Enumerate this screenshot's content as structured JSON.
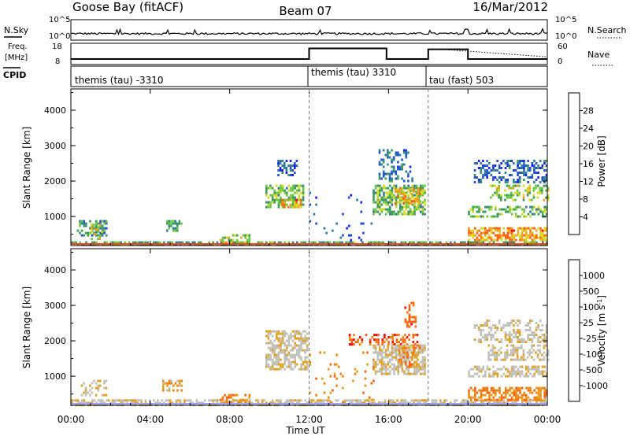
{
  "header": {
    "station": "Goose Bay (fitACF)",
    "beam": "Beam 07",
    "date": "16/Mar/2012"
  },
  "noise_panel": {
    "left_label": "N.Sky",
    "right_label": "N.Search",
    "left_ticks": [
      "10^5",
      "10^0"
    ],
    "right_ticks": [
      "10^5",
      "10^0"
    ]
  },
  "freq_panel": {
    "left_label_line1": "Freq.",
    "left_label_line2": "[MHz]",
    "right_label": "Nave",
    "left_ticks": [
      "18",
      "8"
    ],
    "right_ticks": [
      "60",
      "0"
    ],
    "freq_segments": [
      {
        "start_h": 0.0,
        "end_h": 12.0,
        "freq_mhz": 10.6
      },
      {
        "start_h": 12.0,
        "end_h": 15.9,
        "freq_mhz": 15.6
      },
      {
        "start_h": 15.9,
        "end_h": 18.0,
        "freq_mhz": 10.6
      },
      {
        "start_h": 18.0,
        "end_h": 20.0,
        "freq_mhz": 15.2
      },
      {
        "start_h": 20.0,
        "end_h": 24.0,
        "freq_mhz": 10.6
      }
    ]
  },
  "cpid": {
    "label": "CPID",
    "segments": [
      {
        "start_h": 0,
        "end_h": 12,
        "text": "themis (tau) -3310"
      },
      {
        "start_h": 12,
        "end_h": 18,
        "text": "themis (tau) 3310"
      },
      {
        "start_h": 18,
        "end_h": 24,
        "text": "tau (fast) 503"
      }
    ]
  },
  "colors": {
    "power_scale": [
      "#1a1aff",
      "#1f4fd0",
      "#2d7a9a",
      "#3a9a5a",
      "#6ac840",
      "#d8d820",
      "#f0a020",
      "#ff6010",
      "#ff0000"
    ],
    "velocity_scale": [
      "#ff0000",
      "#ff6010",
      "#f08010",
      "#e0a020",
      "#c0c0b8",
      "#c0c0b8",
      "#80d040",
      "#2aa02a",
      "#2a7aa0",
      "#1a1aff"
    ]
  },
  "chart_data": [
    {
      "type": "heatmap",
      "title": "",
      "quantity": "Power",
      "xlabel": "",
      "ylabel": "Slant Range [km]",
      "xlim": [
        0,
        24
      ],
      "ylim": [
        180,
        4600
      ],
      "x_ticks": [
        "00:00",
        "04:00",
        "08:00",
        "12:00",
        "16:00",
        "20:00",
        "00:00"
      ],
      "y_ticks": [
        1000,
        2000,
        3000,
        4000
      ],
      "colorbar": {
        "label": "Power [dB]",
        "ticks": [
          "4",
          "8",
          "12",
          "16",
          "20",
          "24",
          "28"
        ],
        "range": [
          0,
          30
        ]
      },
      "echo_regions": [
        {
          "t0": 0.0,
          "t1": 24.0,
          "r0": 200,
          "r1": 300,
          "val": 12,
          "density": 0.7
        },
        {
          "t0": 0.3,
          "t1": 1.8,
          "r0": 500,
          "r1": 900,
          "val": 10,
          "density": 0.45
        },
        {
          "t0": 1.0,
          "t1": 1.6,
          "r0": 400,
          "r1": 800,
          "val": 18,
          "density": 0.5
        },
        {
          "t0": 4.8,
          "t1": 5.6,
          "r0": 600,
          "r1": 900,
          "val": 12,
          "density": 0.55
        },
        {
          "t0": 7.5,
          "t1": 9.0,
          "r0": 300,
          "r1": 500,
          "val": 16,
          "density": 0.5
        },
        {
          "t0": 9.8,
          "t1": 11.7,
          "r0": 1300,
          "r1": 1900,
          "val": 14,
          "density": 0.6
        },
        {
          "t0": 10.6,
          "t1": 11.6,
          "r0": 1250,
          "r1": 1500,
          "val": 22,
          "density": 0.6
        },
        {
          "t0": 10.4,
          "t1": 11.4,
          "r0": 2200,
          "r1": 2600,
          "val": 6,
          "density": 0.5
        },
        {
          "t0": 12.0,
          "t1": 15.2,
          "r0": 300,
          "r1": 1700,
          "val": 4,
          "density": 0.05
        },
        {
          "t0": 15.2,
          "t1": 17.8,
          "r0": 1050,
          "r1": 1900,
          "val": 14,
          "density": 0.65
        },
        {
          "t0": 16.3,
          "t1": 17.6,
          "r0": 1400,
          "r1": 1800,
          "val": 20,
          "density": 0.55
        },
        {
          "t0": 15.5,
          "t1": 17.2,
          "r0": 2000,
          "r1": 2900,
          "val": 8,
          "density": 0.3
        },
        {
          "t0": 20.0,
          "t1": 24.0,
          "r0": 350,
          "r1": 700,
          "val": 22,
          "density": 0.65
        },
        {
          "t0": 20.0,
          "t1": 24.0,
          "r0": 1000,
          "r1": 1300,
          "val": 14,
          "density": 0.5
        },
        {
          "t0": 21.0,
          "t1": 24.0,
          "r0": 1500,
          "r1": 1900,
          "val": 16,
          "density": 0.45
        },
        {
          "t0": 20.3,
          "t1": 24.0,
          "r0": 2000,
          "r1": 2600,
          "val": 6,
          "density": 0.4
        }
      ]
    },
    {
      "type": "heatmap",
      "title": "",
      "quantity": "Velocity",
      "xlabel": "Time UT",
      "ylabel": "Slant Range [km]",
      "xlim": [
        0,
        24
      ],
      "ylim": [
        180,
        4600
      ],
      "x_ticks": [
        "00:00",
        "04:00",
        "08:00",
        "12:00",
        "16:00",
        "20:00",
        "00:00"
      ],
      "y_ticks": [
        1000,
        2000,
        3000,
        4000
      ],
      "colorbar": {
        "label": "Velocity [m s",
        "label_sup": "-1",
        "label_end": "]",
        "ticks": [
          "1000",
          "500",
          "100",
          "25",
          "-25",
          "-100",
          "-500",
          "-1000"
        ]
      },
      "echo_regions": [
        {
          "t0": 0.0,
          "t1": 24.0,
          "r0": 200,
          "r1": 350,
          "val": 4,
          "density": 0.65
        },
        {
          "t0": 0.5,
          "t1": 1.8,
          "r0": 500,
          "r1": 900,
          "val": 4,
          "density": 0.35
        },
        {
          "t0": 4.6,
          "t1": 5.6,
          "r0": 600,
          "r1": 900,
          "val": 3,
          "density": 0.5
        },
        {
          "t0": 7.5,
          "t1": 9.0,
          "r0": 300,
          "r1": 500,
          "val": 2,
          "density": 0.45
        },
        {
          "t0": 9.8,
          "t1": 11.9,
          "r0": 1200,
          "r1": 2300,
          "val": 4,
          "density": 0.65
        },
        {
          "t0": 12.0,
          "t1": 15.2,
          "r0": 300,
          "r1": 1700,
          "val": 2,
          "density": 0.06
        },
        {
          "t0": 14.0,
          "t1": 17.5,
          "r0": 1900,
          "r1": 2200,
          "val": 1,
          "density": 0.35
        },
        {
          "t0": 15.2,
          "t1": 17.8,
          "r0": 1050,
          "r1": 1900,
          "val": 4,
          "density": 0.65
        },
        {
          "t0": 16.5,
          "t1": 17.6,
          "r0": 1300,
          "r1": 1900,
          "val": 2,
          "density": 0.45
        },
        {
          "t0": 16.8,
          "t1": 17.4,
          "r0": 2400,
          "r1": 3100,
          "val": 1,
          "density": 0.4
        },
        {
          "t0": 20.0,
          "t1": 24.0,
          "r0": 350,
          "r1": 700,
          "val": 2,
          "density": 0.6
        },
        {
          "t0": 20.0,
          "t1": 24.0,
          "r0": 1000,
          "r1": 1300,
          "val": 4,
          "density": 0.5
        },
        {
          "t0": 21.0,
          "t1": 24.0,
          "r0": 1500,
          "r1": 1900,
          "val": 4,
          "density": 0.5
        },
        {
          "t0": 20.3,
          "t1": 24.0,
          "r0": 2000,
          "r1": 2600,
          "val": 4,
          "density": 0.4
        }
      ]
    }
  ]
}
